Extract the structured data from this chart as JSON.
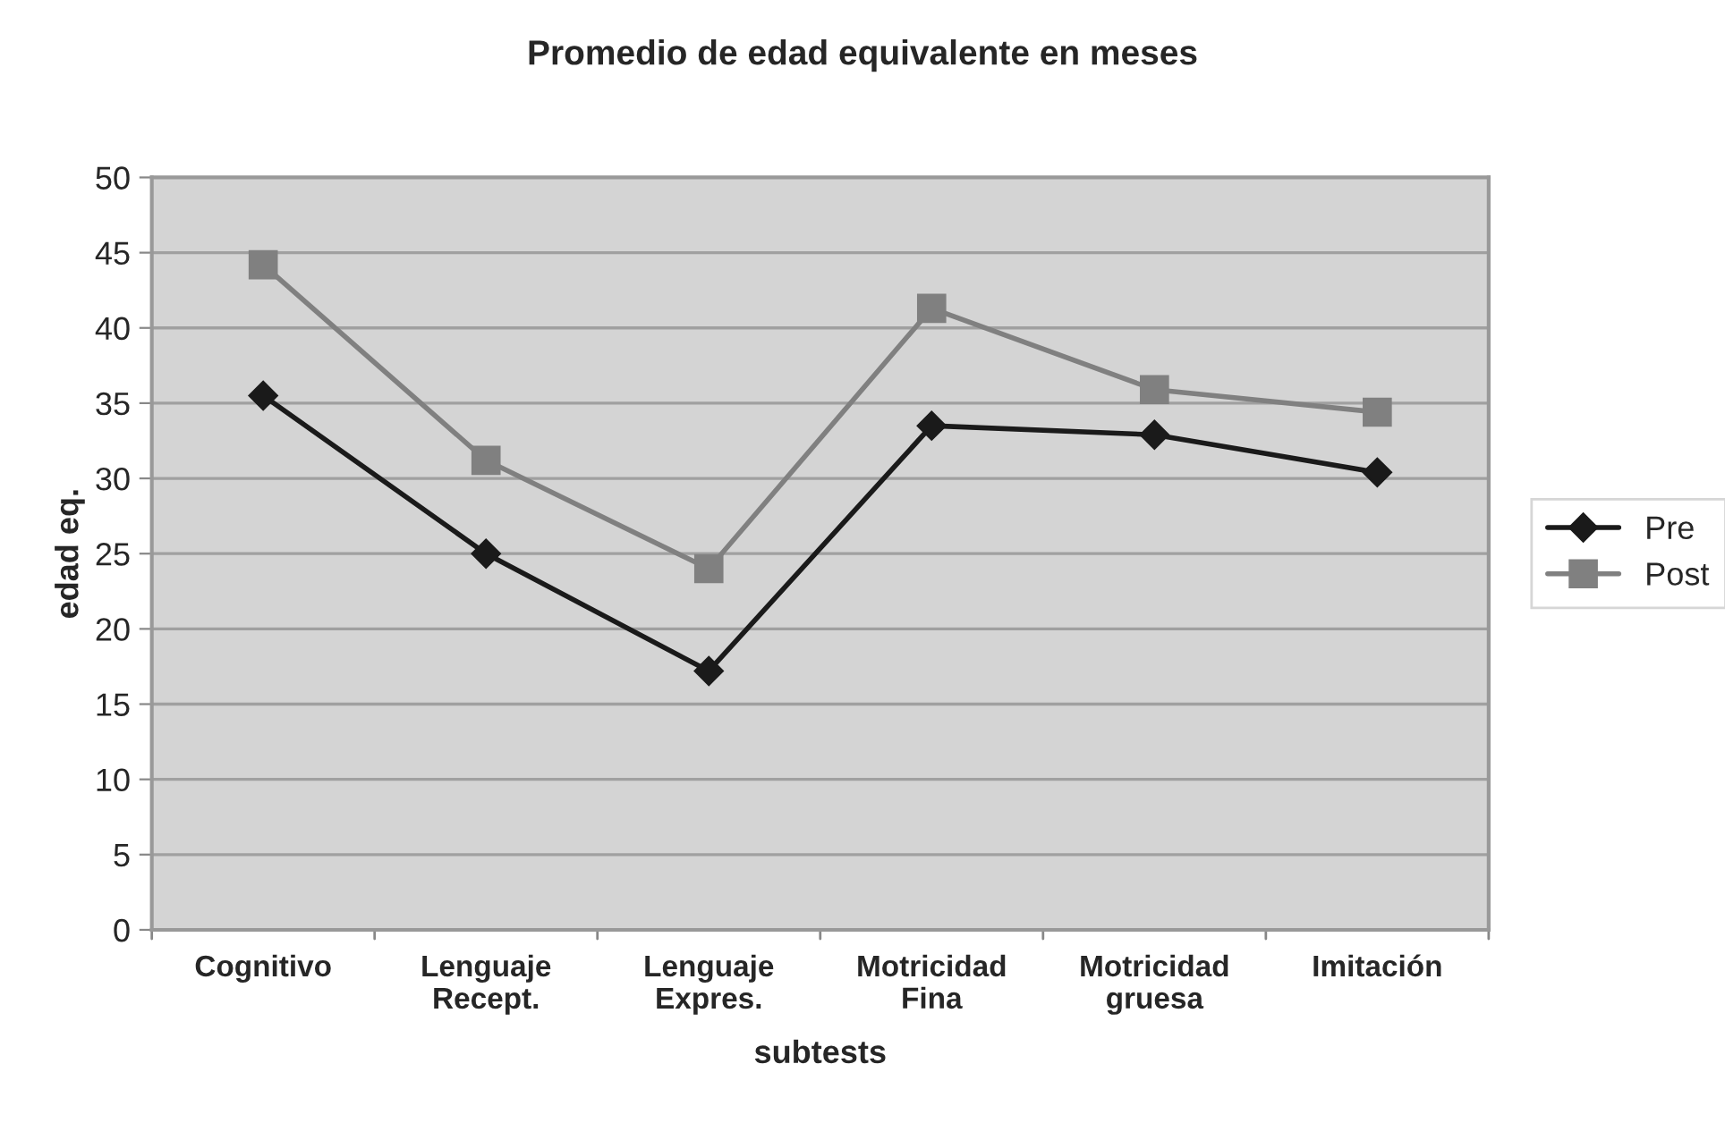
{
  "chart_data": {
    "type": "line",
    "title": "Promedio de edad equivalente en meses",
    "xlabel": "subtests",
    "ylabel": "edad eq.",
    "categories": [
      "Cognitivo",
      "Lenguaje\nRecept.",
      "Lenguaje\nExpres.",
      "Motricidad\nFina",
      "Motricidad\ngruesa",
      "Imitación"
    ],
    "series": [
      {
        "name": "Pre",
        "color": "#1a1a1a",
        "marker": "diamond",
        "values": [
          35.5,
          25.0,
          17.2,
          33.5,
          32.9,
          30.4
        ]
      },
      {
        "name": "Post",
        "color": "#808080",
        "marker": "square",
        "values": [
          44.2,
          31.2,
          24.0,
          41.3,
          35.9,
          34.4
        ]
      }
    ],
    "ylim": [
      0,
      50
    ],
    "yticks": [
      0,
      5,
      10,
      15,
      20,
      25,
      30,
      35,
      40,
      45,
      50
    ],
    "grid": "y",
    "legend": "right"
  }
}
